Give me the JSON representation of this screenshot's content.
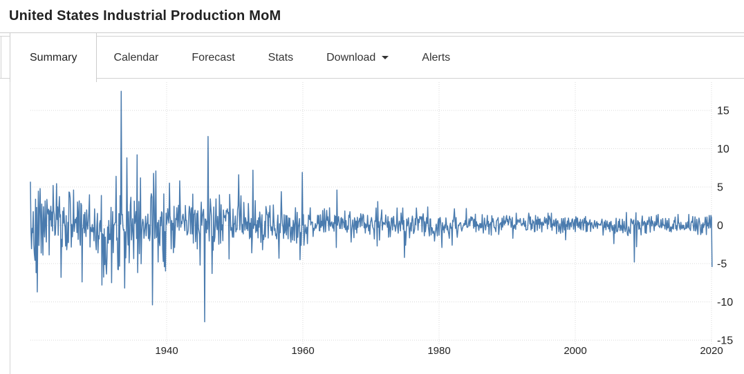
{
  "header": {
    "title": "United States Industrial Production MoM"
  },
  "tabs": [
    {
      "label": "Summary",
      "active": true
    },
    {
      "label": "Calendar",
      "active": false
    },
    {
      "label": "Forecast",
      "active": false
    },
    {
      "label": "Stats",
      "active": false
    },
    {
      "label": "Download",
      "active": false,
      "has_caret": true
    },
    {
      "label": "Alerts",
      "active": false
    }
  ],
  "chart_data": {
    "type": "line",
    "title": "United States Industrial Production MoM",
    "xlabel": "",
    "ylabel": "",
    "unit": "percent",
    "frequency": "monthly",
    "x_range": [
      1920,
      2020.1
    ],
    "ylim": [
      -15,
      15
    ],
    "x_ticks": [
      1940,
      1960,
      1980,
      2000,
      2020
    ],
    "y_ticks": [
      15,
      10,
      5,
      0,
      -5,
      -10,
      -15
    ],
    "grid": "dotted",
    "legend": "none",
    "line_color": "#4a7bae",
    "tick_label_color": "#222",
    "grid_color": "#d9d9d9",
    "seed": 7,
    "volatility_eras": [
      {
        "from": 1920.0,
        "to": 1922.0,
        "sigma": 2.6,
        "drift": -0.6
      },
      {
        "from": 1922.0,
        "to": 1929.5,
        "sigma": 2.1,
        "drift": 0.4
      },
      {
        "from": 1929.5,
        "to": 1933.0,
        "sigma": 2.6,
        "drift": -0.9
      },
      {
        "from": 1933.0,
        "to": 1940.0,
        "sigma": 2.7,
        "drift": 0.3
      },
      {
        "from": 1940.0,
        "to": 1945.5,
        "sigma": 1.7,
        "drift": 0.5
      },
      {
        "from": 1945.5,
        "to": 1950.0,
        "sigma": 1.6,
        "drift": 0.2
      },
      {
        "from": 1950.0,
        "to": 1953.0,
        "sigma": 1.6,
        "drift": 0.4
      },
      {
        "from": 1953.0,
        "to": 1961.0,
        "sigma": 1.3,
        "drift": 0.1
      },
      {
        "from": 1961.0,
        "to": 1970.0,
        "sigma": 0.85,
        "drift": 0.25
      },
      {
        "from": 1970.0,
        "to": 1983.0,
        "sigma": 0.9,
        "drift": 0.1
      },
      {
        "from": 1983.0,
        "to": 2007.0,
        "sigma": 0.6,
        "drift": 0.15
      },
      {
        "from": 2007.0,
        "to": 2010.0,
        "sigma": 0.8,
        "drift": -0.1
      },
      {
        "from": 2010.0,
        "to": 2020.2,
        "sigma": 0.55,
        "drift": 0.1
      }
    ],
    "key_events": [
      [
        1920.8,
        -6.2
      ],
      [
        1921.0,
        -8.7
      ],
      [
        1921.4,
        4.8
      ],
      [
        1923.3,
        5.2
      ],
      [
        1924.5,
        -6.8
      ],
      [
        1926.3,
        4.6
      ],
      [
        1927.6,
        -7.4
      ],
      [
        1929.9,
        -3.6
      ],
      [
        1930.5,
        -7.8
      ],
      [
        1931.9,
        -7.5
      ],
      [
        1932.6,
        6.4
      ],
      [
        1933.3,
        17.5
      ],
      [
        1933.8,
        -8.2
      ],
      [
        1934.2,
        8.8
      ],
      [
        1935.7,
        9.2
      ],
      [
        1936.2,
        6.2
      ],
      [
        1937.9,
        -10.4
      ],
      [
        1938.4,
        7.1
      ],
      [
        1940.4,
        5.5
      ],
      [
        1941.9,
        5.8
      ],
      [
        1944.9,
        -5.2
      ],
      [
        1945.6,
        -12.6
      ],
      [
        1946.1,
        11.6
      ],
      [
        1946.7,
        -6.3
      ],
      [
        1949.2,
        -4.4
      ],
      [
        1950.6,
        6.6
      ],
      [
        1952.5,
        -3.6
      ],
      [
        1952.7,
        7.2
      ],
      [
        1954.1,
        -3.2
      ],
      [
        1956.5,
        -4.3
      ],
      [
        1956.8,
        4.4
      ],
      [
        1959.6,
        -4.5
      ],
      [
        1959.95,
        6.9
      ],
      [
        1960.2,
        -2.6
      ],
      [
        1964.9,
        -2.9
      ],
      [
        1965.0,
        4.6
      ],
      [
        1967.1,
        -2.2
      ],
      [
        1970.9,
        -2.7
      ],
      [
        1971.0,
        3.1
      ],
      [
        1974.9,
        -4.2
      ],
      [
        1975.1,
        -2.6
      ],
      [
        1978.3,
        2.4
      ],
      [
        1980.4,
        -2.9
      ],
      [
        1981.9,
        -2.6
      ],
      [
        1984.0,
        2.2
      ],
      [
        1990.8,
        -1.7
      ],
      [
        1998.6,
        -1.9
      ],
      [
        2005.7,
        -2.4
      ],
      [
        2008.7,
        -4.8
      ],
      [
        2009.0,
        -2.8
      ],
      [
        2018.0,
        -1.2
      ],
      [
        2020.1,
        -5.4
      ]
    ]
  }
}
